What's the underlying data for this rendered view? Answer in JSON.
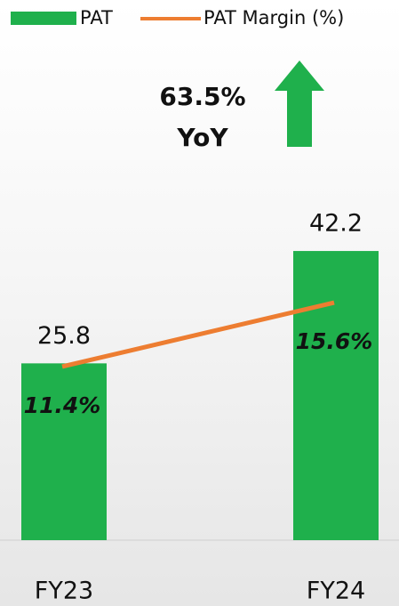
{
  "chart_data": {
    "type": "bar-line",
    "categories": [
      "FY23",
      "FY24"
    ],
    "series": [
      {
        "name": "PAT",
        "type": "bar",
        "color": "#1fb04c",
        "values": [
          25.8,
          42.2
        ]
      },
      {
        "name": "PAT Margin (%)",
        "type": "line",
        "axis": "y2",
        "color": "#ed7d31",
        "values": [
          11.4,
          15.6
        ],
        "value_labels": [
          "11.4%",
          "15.6%"
        ]
      }
    ],
    "annotation": [
      "63.5%",
      "YoY"
    ],
    "ylim": [
      0,
      60
    ],
    "y2lim": [
      0,
      27
    ]
  }
}
